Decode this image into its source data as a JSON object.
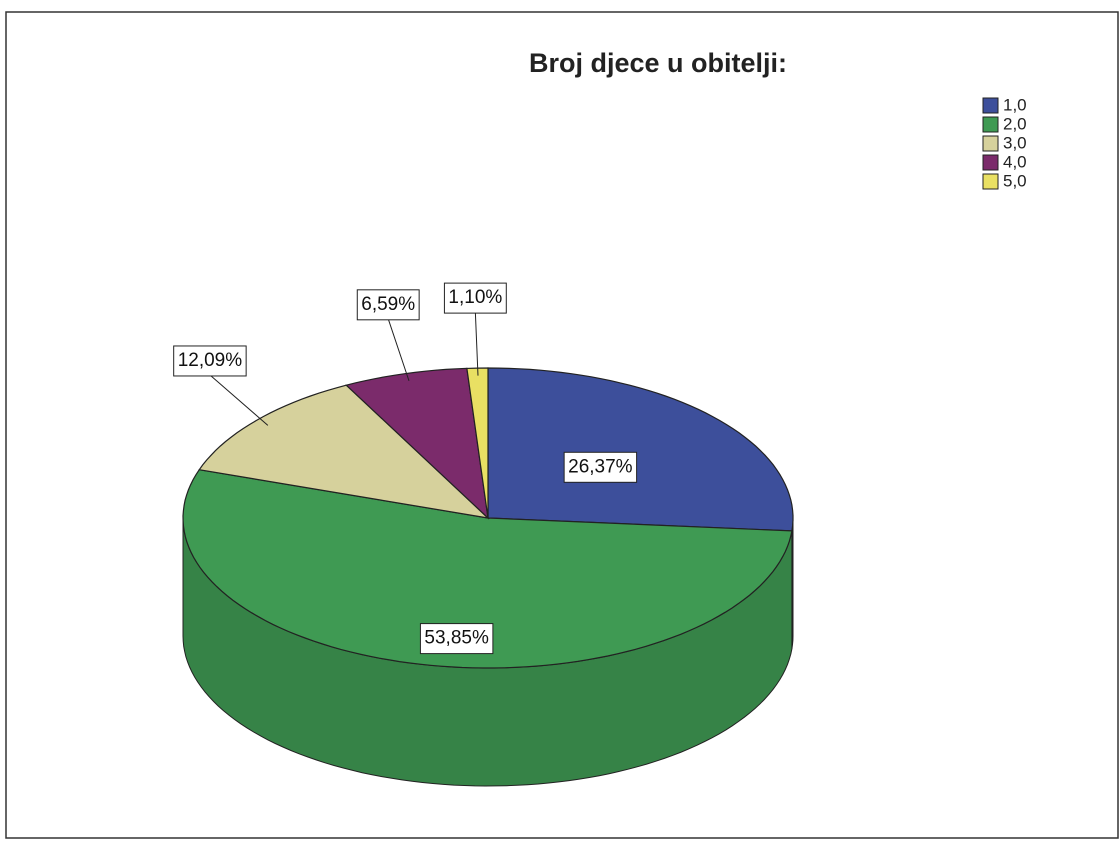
{
  "chart_data": {
    "type": "pie",
    "title": "Broj djece u obitelji:",
    "categories": [
      "1,0",
      "2,0",
      "3,0",
      "4,0",
      "5,0"
    ],
    "values": [
      26.37,
      53.85,
      12.09,
      6.59,
      1.1
    ],
    "value_labels": [
      "26,37%",
      "53,85%",
      "12,09%",
      "6,59%",
      "1,10%"
    ],
    "colors": [
      "#3d4f9b",
      "#3f9a53",
      "#d6d19c",
      "#7b2b6b",
      "#e9e063"
    ],
    "legend": "top-right"
  }
}
